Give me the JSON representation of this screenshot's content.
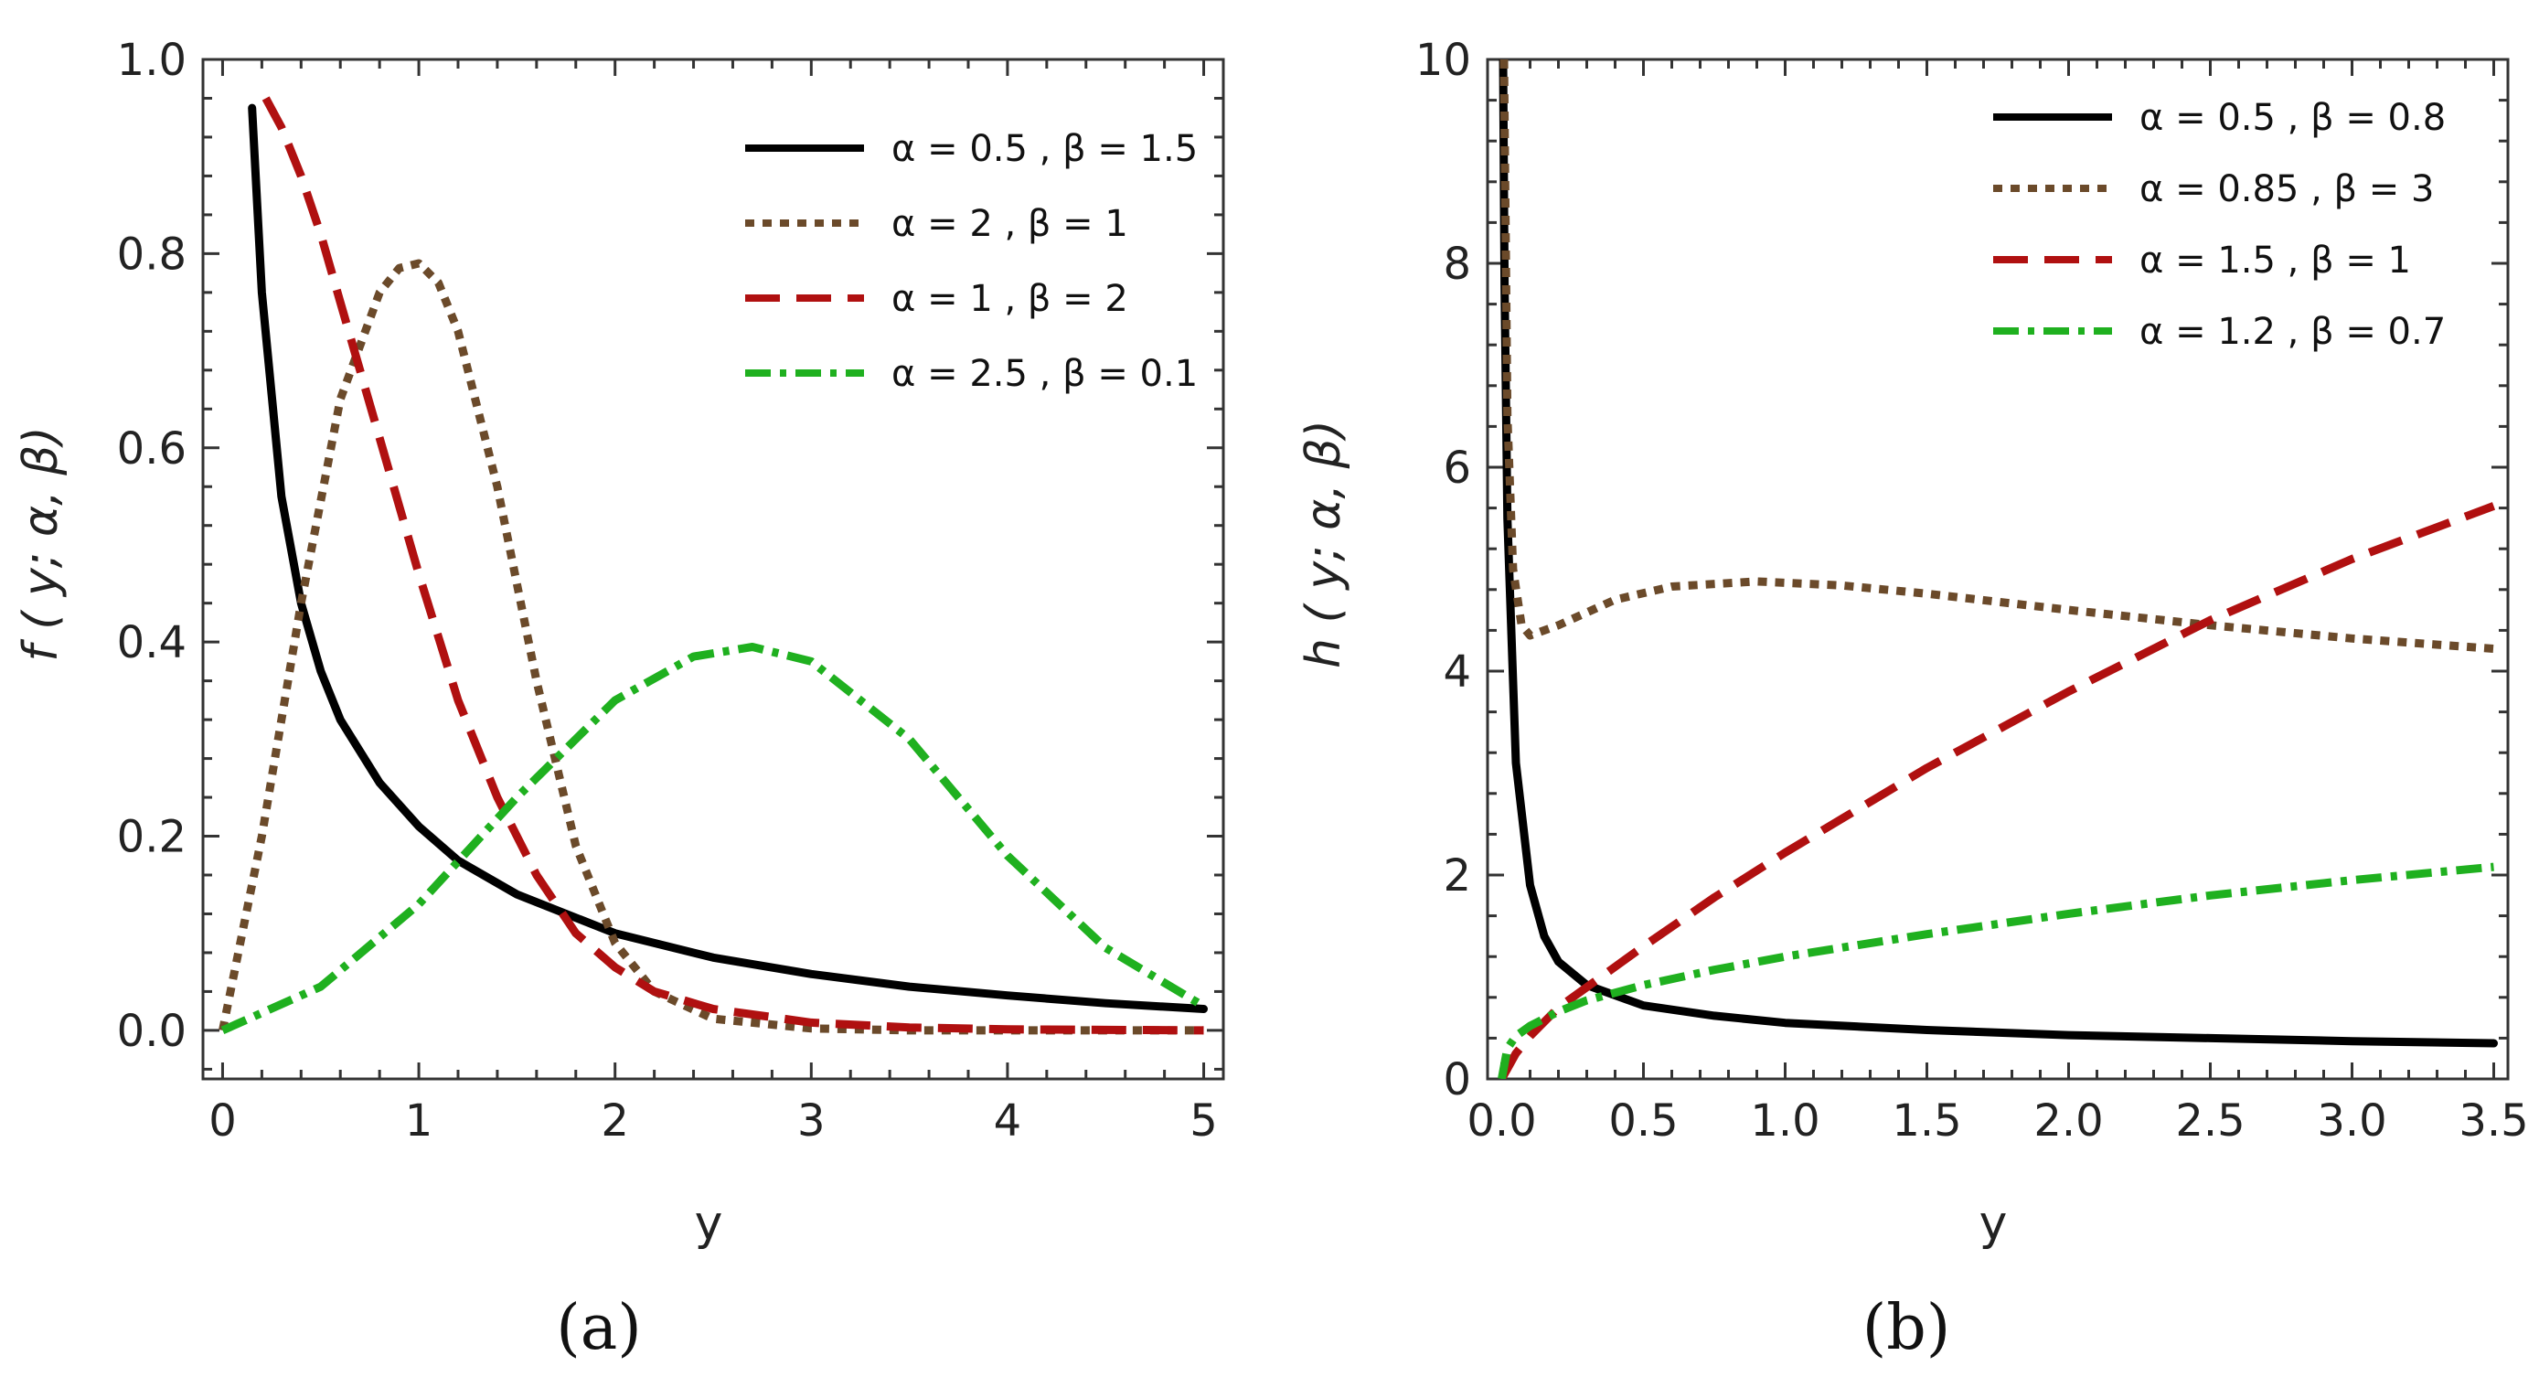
{
  "chart_data": [
    {
      "type": "line",
      "panel_label": "(a)",
      "xlabel": "y",
      "ylabel": "f ( y; α, β)",
      "xlim": [
        -0.1,
        5.1
      ],
      "ylim": [
        -0.05,
        1.0
      ],
      "xticks": [
        0,
        1,
        2,
        3,
        4,
        5
      ],
      "xtick_labels": [
        "0",
        "1",
        "2",
        "3",
        "4",
        "5"
      ],
      "yticks": [
        0.0,
        0.2,
        0.4,
        0.6,
        0.8,
        1.0
      ],
      "ytick_labels": [
        "0.0",
        "0.2",
        "0.4",
        "0.6",
        "0.8",
        "1.0"
      ],
      "legend_position": "top-right",
      "series": [
        {
          "name": "α = 0.5 , β = 1.5",
          "color": "#000000",
          "dash": "solid",
          "x": [
            0.15,
            0.2,
            0.3,
            0.4,
            0.5,
            0.6,
            0.8,
            1.0,
            1.2,
            1.5,
            2.0,
            2.5,
            3.0,
            3.5,
            4.0,
            4.5,
            5.0
          ],
          "y": [
            0.95,
            0.76,
            0.55,
            0.44,
            0.37,
            0.32,
            0.255,
            0.21,
            0.175,
            0.14,
            0.1,
            0.075,
            0.058,
            0.045,
            0.036,
            0.028,
            0.022
          ]
        },
        {
          "name": "α = 2 , β = 1",
          "color": "#6b4a2a",
          "dash": "dotted",
          "x": [
            0.0,
            0.2,
            0.4,
            0.6,
            0.8,
            0.9,
            1.0,
            1.1,
            1.2,
            1.4,
            1.6,
            1.8,
            2.0,
            2.2,
            2.5,
            3.0,
            3.5,
            4.0,
            5.0
          ],
          "y": [
            0.0,
            0.2,
            0.44,
            0.65,
            0.76,
            0.785,
            0.79,
            0.77,
            0.72,
            0.56,
            0.36,
            0.19,
            0.09,
            0.04,
            0.012,
            0.002,
            0.0,
            0.0,
            0.0
          ]
        },
        {
          "name": "α = 1 , β = 2",
          "color": "#b01010",
          "dash": "dashed",
          "x": [
            0.22,
            0.3,
            0.4,
            0.5,
            0.6,
            0.7,
            0.8,
            1.0,
            1.2,
            1.4,
            1.6,
            1.8,
            2.0,
            2.2,
            2.5,
            3.0,
            3.5,
            4.0,
            5.0
          ],
          "y": [
            0.96,
            0.93,
            0.88,
            0.82,
            0.75,
            0.68,
            0.61,
            0.47,
            0.34,
            0.24,
            0.16,
            0.1,
            0.065,
            0.04,
            0.022,
            0.008,
            0.003,
            0.001,
            0.0
          ]
        },
        {
          "name": "α = 2.5 , β = 0.1",
          "color": "#1fb01f",
          "dash": "dashdot",
          "x": [
            0.0,
            0.5,
            1.0,
            1.5,
            2.0,
            2.4,
            2.7,
            3.0,
            3.5,
            4.0,
            4.5,
            5.0
          ],
          "y": [
            0.0,
            0.045,
            0.13,
            0.24,
            0.34,
            0.385,
            0.395,
            0.38,
            0.3,
            0.18,
            0.085,
            0.025
          ]
        }
      ]
    },
    {
      "type": "line",
      "panel_label": "(b)",
      "xlabel": "y",
      "ylabel": "h ( y; α, β)",
      "xlim": [
        -0.05,
        3.55
      ],
      "ylim": [
        0,
        10
      ],
      "xticks": [
        0.0,
        0.5,
        1.0,
        1.5,
        2.0,
        2.5,
        3.0,
        3.5
      ],
      "xtick_labels": [
        "0.0",
        "0.5",
        "1.0",
        "1.5",
        "2.0",
        "2.5",
        "3.0",
        "3.5"
      ],
      "yticks": [
        0,
        2,
        4,
        6,
        8,
        10
      ],
      "ytick_labels": [
        "0",
        "2",
        "4",
        "6",
        "8",
        "10"
      ],
      "legend_position": "top-right",
      "series": [
        {
          "name": "α = 0.5 , β = 0.8",
          "color": "#000000",
          "dash": "solid",
          "x": [
            0.005,
            0.01,
            0.02,
            0.05,
            0.1,
            0.15,
            0.2,
            0.3,
            0.5,
            0.75,
            1.0,
            1.5,
            2.0,
            2.5,
            3.0,
            3.5
          ],
          "y": [
            10.0,
            7.8,
            5.5,
            3.1,
            1.9,
            1.4,
            1.15,
            0.92,
            0.72,
            0.62,
            0.55,
            0.48,
            0.43,
            0.4,
            0.37,
            0.35
          ]
        },
        {
          "name": "α = 0.85 , β = 3",
          "color": "#6b4a2a",
          "dash": "dotted",
          "x": [
            0.008,
            0.02,
            0.04,
            0.07,
            0.1,
            0.2,
            0.4,
            0.6,
            0.9,
            1.2,
            1.5,
            2.0,
            2.5,
            3.0,
            3.5
          ],
          "y": [
            10.0,
            6.5,
            5.0,
            4.45,
            4.35,
            4.45,
            4.7,
            4.83,
            4.88,
            4.84,
            4.76,
            4.6,
            4.45,
            4.32,
            4.22
          ]
        },
        {
          "name": "α = 1.5 , β = 1",
          "color": "#b01010",
          "dash": "dashed",
          "x": [
            0.0,
            0.05,
            0.1,
            0.2,
            0.3,
            0.5,
            0.75,
            1.0,
            1.5,
            2.0,
            2.5,
            3.0,
            3.5
          ],
          "y": [
            0.0,
            0.25,
            0.42,
            0.7,
            0.9,
            1.3,
            1.78,
            2.22,
            3.05,
            3.8,
            4.5,
            5.1,
            5.62
          ]
        },
        {
          "name": "α = 1.2 , β = 0.7",
          "color": "#1fb01f",
          "dash": "dashdot",
          "x": [
            0.0,
            0.02,
            0.05,
            0.1,
            0.2,
            0.3,
            0.5,
            0.75,
            1.0,
            1.5,
            2.0,
            2.5,
            3.0,
            3.5
          ],
          "y": [
            0.0,
            0.3,
            0.42,
            0.52,
            0.66,
            0.77,
            0.92,
            1.07,
            1.2,
            1.42,
            1.62,
            1.8,
            1.95,
            2.08
          ]
        }
      ]
    }
  ]
}
